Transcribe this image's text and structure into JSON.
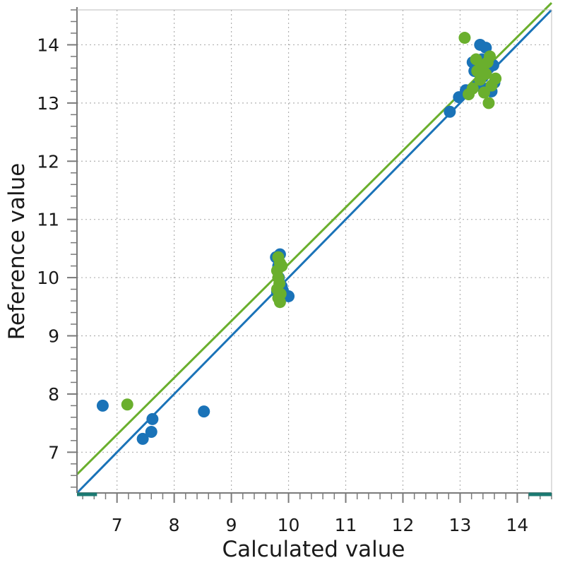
{
  "chart_data": {
    "type": "scatter",
    "xlabel": "Calculated value",
    "ylabel": "Reference value",
    "xlim": [
      6.3,
      14.6
    ],
    "ylim": [
      6.3,
      14.6
    ],
    "x_ticks": [
      7,
      8,
      9,
      10,
      11,
      12,
      13,
      14
    ],
    "y_ticks": [
      7,
      8,
      9,
      10,
      11,
      12,
      13,
      14
    ],
    "x_tick_labels": [
      "7",
      "8",
      "9",
      "10",
      "11",
      "12",
      "13",
      "14"
    ],
    "y_tick_labels": [
      "7",
      "8",
      "9",
      "10",
      "11",
      "12",
      "13",
      "14"
    ],
    "grid": true,
    "minor_ticks_per_unit": 5,
    "series": [
      {
        "color": "#1a73b8",
        "points": [
          [
            6.75,
            7.8
          ],
          [
            7.45,
            7.23
          ],
          [
            7.6,
            7.35
          ],
          [
            7.62,
            7.57
          ],
          [
            8.52,
            7.7
          ],
          [
            9.78,
            10.35
          ],
          [
            9.85,
            10.4
          ],
          [
            9.82,
            10.2
          ],
          [
            9.83,
            10.0
          ],
          [
            9.8,
            9.75
          ],
          [
            9.9,
            9.78
          ],
          [
            9.85,
            9.6
          ],
          [
            9.92,
            9.7
          ],
          [
            10.0,
            9.68
          ],
          [
            9.88,
            9.85
          ],
          [
            12.82,
            12.85
          ],
          [
            12.98,
            13.1
          ],
          [
            13.1,
            13.22
          ],
          [
            13.22,
            13.7
          ],
          [
            13.35,
            14.0
          ],
          [
            13.45,
            13.95
          ],
          [
            13.3,
            13.3
          ],
          [
            13.4,
            13.45
          ],
          [
            13.5,
            13.6
          ],
          [
            13.55,
            13.2
          ],
          [
            13.6,
            13.35
          ],
          [
            13.38,
            13.75
          ],
          [
            13.25,
            13.55
          ],
          [
            13.48,
            13.25
          ],
          [
            13.58,
            13.65
          ]
        ],
        "fit_line": [
          [
            6.3,
            6.3
          ],
          [
            14.6,
            14.6
          ]
        ]
      },
      {
        "color": "#6aaf2d",
        "points": [
          [
            7.18,
            7.82
          ],
          [
            9.82,
            10.35
          ],
          [
            9.85,
            10.25
          ],
          [
            9.8,
            10.12
          ],
          [
            9.88,
            10.2
          ],
          [
            9.82,
            10.0
          ],
          [
            9.84,
            9.9
          ],
          [
            9.8,
            9.8
          ],
          [
            9.86,
            9.72
          ],
          [
            9.82,
            9.65
          ],
          [
            9.85,
            9.58
          ],
          [
            13.08,
            14.12
          ],
          [
            13.15,
            13.15
          ],
          [
            13.22,
            13.25
          ],
          [
            13.28,
            13.75
          ],
          [
            13.3,
            13.55
          ],
          [
            13.35,
            13.4
          ],
          [
            13.4,
            13.6
          ],
          [
            13.42,
            13.18
          ],
          [
            13.45,
            13.5
          ],
          [
            13.48,
            13.7
          ],
          [
            13.5,
            13.0
          ],
          [
            13.52,
            13.8
          ],
          [
            13.55,
            13.3
          ],
          [
            13.62,
            13.42
          ],
          [
            13.38,
            13.65
          ]
        ],
        "fit_line": [
          [
            6.3,
            6.62
          ],
          [
            14.6,
            14.72
          ]
        ]
      }
    ]
  }
}
